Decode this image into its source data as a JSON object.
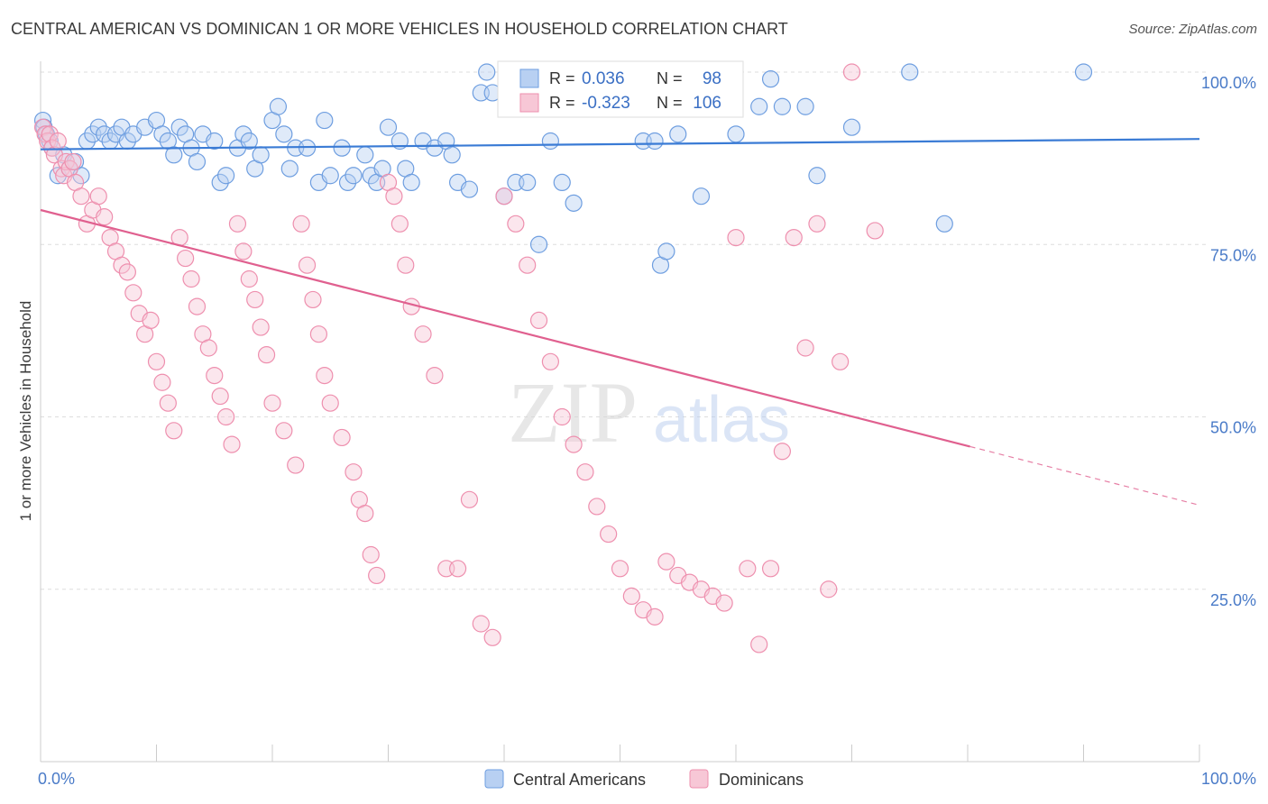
{
  "title": "CENTRAL AMERICAN VS DOMINICAN 1 OR MORE VEHICLES IN HOUSEHOLD CORRELATION CHART",
  "source": "Source: ZipAtlas.com",
  "watermark": {
    "zip": "ZIP",
    "atlas": "atlas"
  },
  "chart_data": {
    "type": "scatter",
    "ylabel": "1 or more Vehicles in Household",
    "xlim": [
      0,
      100
    ],
    "ylim": [
      0,
      100
    ],
    "x_ticks": [
      {
        "value": 0,
        "label": "0.0%"
      },
      {
        "value": 100,
        "label": "100.0%"
      }
    ],
    "y_ticks": [
      {
        "value": 25,
        "label": "25.0%"
      },
      {
        "value": 50,
        "label": "50.0%"
      },
      {
        "value": 75,
        "label": "75.0%"
      },
      {
        "value": 100,
        "label": "100.0%"
      }
    ],
    "grid": true,
    "legend_position": "top-center",
    "series": [
      {
        "name": "Central Americans",
        "color": "#6e9ee0",
        "fill": "#b8d0f2",
        "line_color": "#3a7bd5",
        "R": "0.036",
        "N": "98",
        "trend": {
          "x0": 0,
          "y0": 88.8,
          "x1": 100,
          "y1": 90.3
        },
        "points": [
          [
            0.2,
            93
          ],
          [
            0.3,
            92
          ],
          [
            0.5,
            91
          ],
          [
            0.8,
            90
          ],
          [
            1,
            89
          ],
          [
            1.5,
            85
          ],
          [
            2,
            88
          ],
          [
            2.5,
            86
          ],
          [
            3,
            87
          ],
          [
            3.5,
            85
          ],
          [
            4,
            90
          ],
          [
            4.5,
            91
          ],
          [
            5,
            92
          ],
          [
            5.5,
            91
          ],
          [
            6,
            90
          ],
          [
            6.5,
            91
          ],
          [
            7,
            92
          ],
          [
            7.5,
            90
          ],
          [
            8,
            91
          ],
          [
            9,
            92
          ],
          [
            10,
            93
          ],
          [
            10.5,
            91
          ],
          [
            11,
            90
          ],
          [
            11.5,
            88
          ],
          [
            12,
            92
          ],
          [
            12.5,
            91
          ],
          [
            13,
            89
          ],
          [
            13.5,
            87
          ],
          [
            14,
            91
          ],
          [
            15,
            90
          ],
          [
            15.5,
            84
          ],
          [
            16,
            85
          ],
          [
            17,
            89
          ],
          [
            17.5,
            91
          ],
          [
            18,
            90
          ],
          [
            18.5,
            86
          ],
          [
            19,
            88
          ],
          [
            20,
            93
          ],
          [
            20.5,
            95
          ],
          [
            21,
            91
          ],
          [
            21.5,
            86
          ],
          [
            22,
            89
          ],
          [
            23,
            89
          ],
          [
            24,
            84
          ],
          [
            24.5,
            93
          ],
          [
            25,
            85
          ],
          [
            26,
            89
          ],
          [
            26.5,
            84
          ],
          [
            27,
            85
          ],
          [
            28,
            88
          ],
          [
            28.5,
            85
          ],
          [
            29,
            84
          ],
          [
            29.5,
            86
          ],
          [
            30,
            92
          ],
          [
            31,
            90
          ],
          [
            31.5,
            86
          ],
          [
            32,
            84
          ],
          [
            33,
            90
          ],
          [
            34,
            89
          ],
          [
            35,
            90
          ],
          [
            35.5,
            88
          ],
          [
            36,
            84
          ],
          [
            37,
            83
          ],
          [
            38,
            97
          ],
          [
            38.5,
            100
          ],
          [
            39,
            97
          ],
          [
            40,
            82
          ],
          [
            41,
            84
          ],
          [
            42,
            84
          ],
          [
            43,
            75
          ],
          [
            44,
            90
          ],
          [
            45,
            84
          ],
          [
            46,
            81
          ],
          [
            47,
            100
          ],
          [
            48,
            96
          ],
          [
            49,
            95
          ],
          [
            50,
            98
          ],
          [
            51,
            96
          ],
          [
            52,
            90
          ],
          [
            53,
            90
          ],
          [
            53.5,
            72
          ],
          [
            54,
            74
          ],
          [
            55,
            91
          ],
          [
            57,
            82
          ],
          [
            58,
            100
          ],
          [
            60,
            91
          ],
          [
            62,
            95
          ],
          [
            63,
            99
          ],
          [
            64,
            95
          ],
          [
            66,
            95
          ],
          [
            67,
            85
          ],
          [
            70,
            92
          ],
          [
            75,
            100
          ],
          [
            78,
            78
          ],
          [
            90,
            100
          ]
        ]
      },
      {
        "name": "Dominicans",
        "color": "#ee8fae",
        "fill": "#f7c7d6",
        "line_color": "#e0608f",
        "R": "-0.323",
        "N": "106",
        "trend": {
          "x0": 0,
          "y0": 80,
          "x1": 80.2,
          "y1": 45.7
        },
        "trend_dashed": {
          "x0": 80.2,
          "y0": 45.7,
          "x1": 100,
          "y1": 37.2
        },
        "points": [
          [
            0.2,
            92
          ],
          [
            0.4,
            91
          ],
          [
            0.6,
            90
          ],
          [
            0.8,
            91
          ],
          [
            1,
            89
          ],
          [
            1.2,
            88
          ],
          [
            1.5,
            90
          ],
          [
            1.8,
            86
          ],
          [
            2,
            85
          ],
          [
            2.2,
            87
          ],
          [
            2.5,
            86
          ],
          [
            2.8,
            87
          ],
          [
            3,
            84
          ],
          [
            3.5,
            82
          ],
          [
            4,
            78
          ],
          [
            4.5,
            80
          ],
          [
            5,
            82
          ],
          [
            5.5,
            79
          ],
          [
            6,
            76
          ],
          [
            6.5,
            74
          ],
          [
            7,
            72
          ],
          [
            7.5,
            71
          ],
          [
            8,
            68
          ],
          [
            8.5,
            65
          ],
          [
            9,
            62
          ],
          [
            9.5,
            64
          ],
          [
            10,
            58
          ],
          [
            10.5,
            55
          ],
          [
            11,
            52
          ],
          [
            11.5,
            48
          ],
          [
            12,
            76
          ],
          [
            12.5,
            73
          ],
          [
            13,
            70
          ],
          [
            13.5,
            66
          ],
          [
            14,
            62
          ],
          [
            14.5,
            60
          ],
          [
            15,
            56
          ],
          [
            15.5,
            53
          ],
          [
            16,
            50
          ],
          [
            16.5,
            46
          ],
          [
            17,
            78
          ],
          [
            17.5,
            74
          ],
          [
            18,
            70
          ],
          [
            18.5,
            67
          ],
          [
            19,
            63
          ],
          [
            19.5,
            59
          ],
          [
            20,
            52
          ],
          [
            21,
            48
          ],
          [
            22,
            43
          ],
          [
            22.5,
            78
          ],
          [
            23,
            72
          ],
          [
            23.5,
            67
          ],
          [
            24,
            62
          ],
          [
            24.5,
            56
          ],
          [
            25,
            52
          ],
          [
            26,
            47
          ],
          [
            27,
            42
          ],
          [
            27.5,
            38
          ],
          [
            28,
            36
          ],
          [
            28.5,
            30
          ],
          [
            29,
            27
          ],
          [
            30,
            84
          ],
          [
            30.5,
            82
          ],
          [
            31,
            78
          ],
          [
            31.5,
            72
          ],
          [
            32,
            66
          ],
          [
            33,
            62
          ],
          [
            34,
            56
          ],
          [
            35,
            28
          ],
          [
            36,
            28
          ],
          [
            37,
            38
          ],
          [
            38,
            20
          ],
          [
            39,
            18
          ],
          [
            40,
            82
          ],
          [
            41,
            78
          ],
          [
            42,
            72
          ],
          [
            43,
            64
          ],
          [
            44,
            58
          ],
          [
            45,
            50
          ],
          [
            46,
            46
          ],
          [
            47,
            42
          ],
          [
            48,
            37
          ],
          [
            49,
            33
          ],
          [
            50,
            28
          ],
          [
            51,
            24
          ],
          [
            52,
            22
          ],
          [
            53,
            21
          ],
          [
            54,
            29
          ],
          [
            55,
            27
          ],
          [
            56,
            26
          ],
          [
            57,
            25
          ],
          [
            58,
            24
          ],
          [
            59,
            23
          ],
          [
            60,
            76
          ],
          [
            61,
            28
          ],
          [
            62,
            17
          ],
          [
            63,
            28
          ],
          [
            64,
            45
          ],
          [
            65,
            76
          ],
          [
            66,
            60
          ],
          [
            67,
            78
          ],
          [
            68,
            25
          ],
          [
            69,
            58
          ],
          [
            70,
            100
          ],
          [
            72,
            77
          ]
        ]
      }
    ]
  }
}
